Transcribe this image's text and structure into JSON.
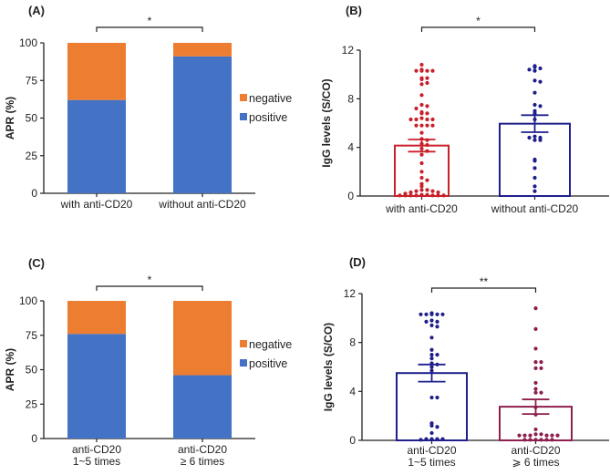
{
  "colors": {
    "positive": "#4472C4",
    "negative": "#ED7D31",
    "red": "#C8202A",
    "navy": "#1E1E8C",
    "maroon": "#8E1F4E",
    "axis": "#222222"
  },
  "chart_data": [
    {
      "panel": "(A)",
      "type": "bar",
      "stacked": true,
      "categories": [
        "with anti-CD20",
        "without anti-CD20"
      ],
      "series": [
        {
          "name": "positive",
          "values": [
            62,
            91
          ]
        },
        {
          "name": "negative",
          "values": [
            38,
            9
          ]
        }
      ],
      "ylabel": "APR (%)",
      "ylim": [
        0,
        100
      ],
      "yticks": [
        "0",
        "25",
        "50",
        "75",
        "100"
      ],
      "legend": "right",
      "significance": "*"
    },
    {
      "panel": "(B)",
      "type": "scatter",
      "categories": [
        "with anti-CD20",
        "without anti-CD20"
      ],
      "means": [
        4.15,
        5.95
      ],
      "sem": [
        0.5,
        0.7
      ],
      "points": [
        [
          10.8,
          10.4,
          10.3,
          10.3,
          10.3,
          10.3,
          9.7,
          9.7,
          9.6,
          9.3,
          9.2,
          8.3,
          7.5,
          7.4,
          7.2,
          6.9,
          6.8,
          6.8,
          6.4,
          6.3,
          6.3,
          6.3,
          6.3,
          5.8,
          5.8,
          5.8,
          5.8,
          5.2,
          4.7,
          4.6,
          4.3,
          4.2,
          3.9,
          3.7,
          3.4,
          2.7,
          2.0,
          1.5,
          1.3,
          1.0,
          0.8,
          0.5,
          0.5,
          0.4,
          0.4,
          0.3,
          0.3,
          0.2,
          0.1,
          0.1,
          0.05,
          0.05,
          0.05,
          0.05,
          0.05,
          0.05,
          0.05
        ],
        [
          10.7,
          10.6,
          10.5,
          10.4,
          10.3,
          9.5,
          9.4,
          8.5,
          7.5,
          7.4,
          7.0,
          6.8,
          6.3,
          4.9,
          4.8,
          4.8,
          4.6,
          4.6,
          3.0,
          2.9,
          2.3,
          1.5,
          0.8,
          0.4
        ]
      ],
      "ylabel": "IgG levels (S/CO)",
      "ylim": [
        0,
        12
      ],
      "yticks": [
        "0",
        "4",
        "8",
        "12"
      ],
      "significance": "*"
    },
    {
      "panel": "(C)",
      "type": "bar",
      "stacked": true,
      "categories": [
        "anti-CD20\n1~5 times",
        "anti-CD20\n≥ 6 times"
      ],
      "series": [
        {
          "name": "positive",
          "values": [
            76,
            46
          ]
        },
        {
          "name": "negative",
          "values": [
            24,
            54
          ]
        }
      ],
      "ylabel": "APR (%)",
      "ylim": [
        0,
        100
      ],
      "yticks": [
        "0",
        "25",
        "50",
        "75",
        "100"
      ],
      "legend": "right",
      "significance": "*"
    },
    {
      "panel": "(D)",
      "type": "scatter",
      "categories": [
        "anti-CD20\n1~5 times",
        "anti-CD20\n⩾ 6 times"
      ],
      "means": [
        5.5,
        2.75
      ],
      "sem": [
        0.7,
        0.6
      ],
      "points": [
        [
          10.4,
          10.3,
          10.3,
          10.3,
          10.3,
          10.3,
          9.8,
          9.7,
          9.7,
          9.4,
          9.3,
          8.4,
          7.4,
          7.0,
          7.0,
          6.7,
          6.3,
          6.2,
          6.0,
          5.7,
          3.5,
          3.5,
          1.4,
          1.2,
          1.1,
          0.6,
          0.1,
          0.1,
          0.1,
          0.1,
          0.05
        ],
        [
          10.8,
          9.1,
          7.5,
          6.4,
          6.4,
          5.9,
          5.9,
          4.7,
          4.2,
          3.9,
          3.9,
          2.7,
          2.1,
          0.9,
          0.5,
          0.5,
          0.4,
          0.4,
          0.4,
          0.4,
          0.4,
          0.4,
          0.05,
          0.05,
          0.05,
          0.05,
          0.05,
          0.05
        ]
      ],
      "ylabel": "IgG levels (S/CO)",
      "ylim": [
        0,
        12
      ],
      "yticks": [
        "0",
        "4",
        "8",
        "12"
      ],
      "significance": "**"
    }
  ]
}
